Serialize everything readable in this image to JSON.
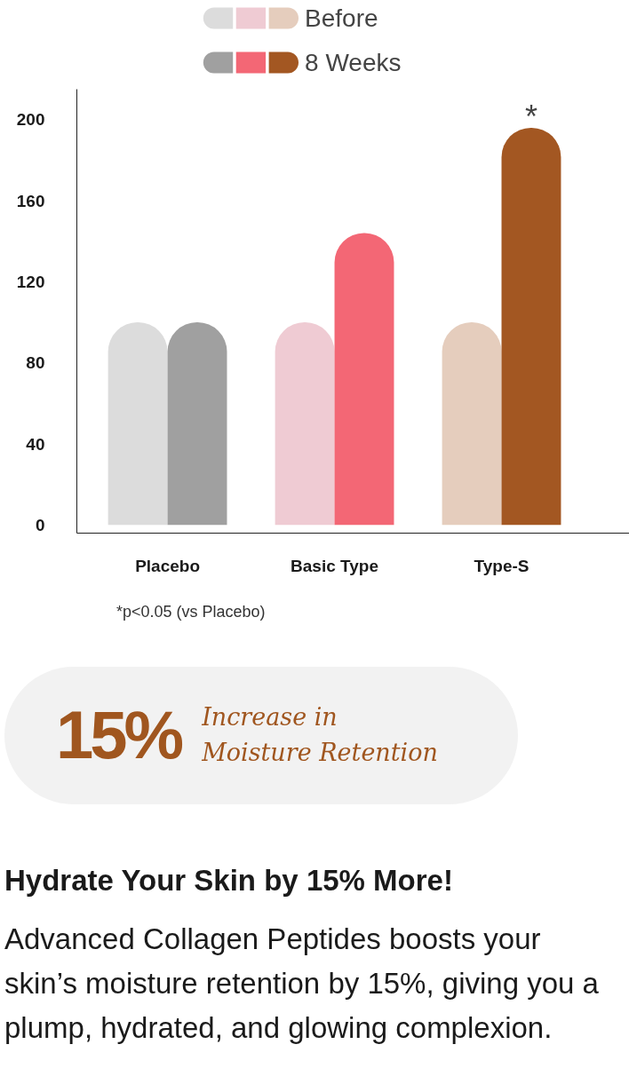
{
  "chart_data": {
    "type": "bar",
    "categories": [
      "Placebo",
      "Basic Type",
      "Type-S"
    ],
    "series": [
      {
        "name": "Before",
        "colors": [
          "#dcdcdc",
          "#efcbd3",
          "#e5cdbd"
        ],
        "values": [
          100,
          100,
          100
        ]
      },
      {
        "name": "8 Weeks",
        "colors": [
          "#a0a0a0",
          "#f36775",
          "#a35722"
        ],
        "values": [
          100,
          144,
          196
        ]
      }
    ],
    "ylim": [
      -4,
      215
    ],
    "yticks": [
      0,
      40,
      80,
      120,
      160,
      200
    ],
    "grid": false,
    "legend": "top left",
    "annotations": [
      "*",
      "*p<0.05 (vs Placebo)",
      "15%",
      "Increase in Moisture Retention",
      "Hydrate Your Skin by 15% More!",
      "Advanced Collagen Peptides boosts your skin’s moisture retention by 15%, giving you a plump, hydrated, and glowing complexion."
    ]
  }
}
